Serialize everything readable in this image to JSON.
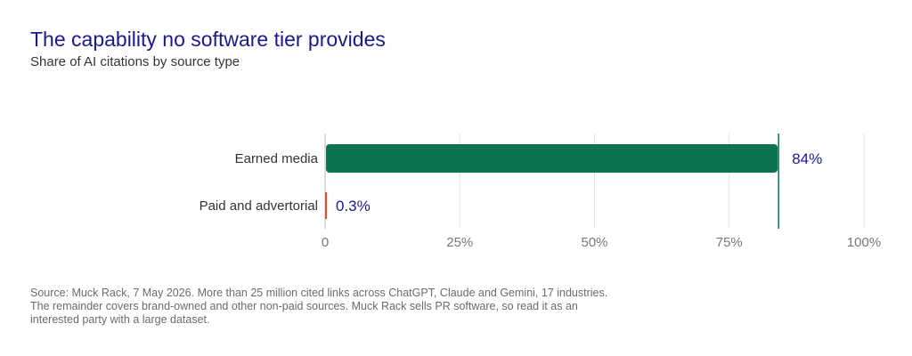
{
  "title": "The capability no software tier provides",
  "subtitle": "Share of AI citations by source type",
  "note": "Source: Muck Rack, 7 May 2026. More than 25 million cited links across ChatGPT, Claude and Gemini, 17 industries. The remainder covers brand-owned and other non-paid sources. Muck Rack sells PR software, so read it as an interested party with a large dataset.",
  "chart_data": {
    "type": "bar",
    "orientation": "horizontal",
    "categories": [
      "Earned media",
      "Paid and advertorial"
    ],
    "values": [
      84,
      0.3
    ],
    "value_labels": [
      "84%",
      "0.3%"
    ],
    "colors": [
      "#0e7350",
      "#e0502a"
    ],
    "xlim": [
      0,
      100
    ],
    "xticks": [
      0,
      25,
      50,
      75,
      100
    ],
    "xtick_labels": [
      "0",
      "25%",
      "50%",
      "75%",
      "100%"
    ],
    "grid": true
  }
}
